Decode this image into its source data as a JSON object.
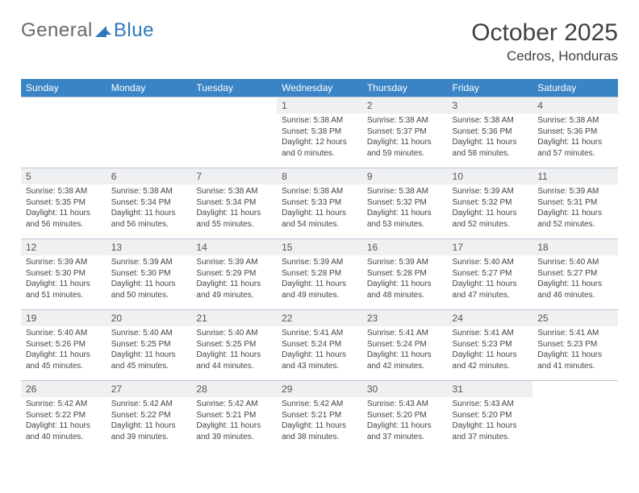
{
  "logo": {
    "text1": "General",
    "text2": "Blue"
  },
  "title": "October 2025",
  "location": "Cedros, Honduras",
  "header_bg": "#3a84c6",
  "daynum_bg": "#eef0f2",
  "border_color": "#b9c7d4",
  "day_headers": [
    "Sunday",
    "Monday",
    "Tuesday",
    "Wednesday",
    "Thursday",
    "Friday",
    "Saturday"
  ],
  "weeks": [
    [
      null,
      null,
      null,
      {
        "n": "1",
        "sr": "5:38 AM",
        "ss": "5:38 PM",
        "dl": "12 hours and 0 minutes."
      },
      {
        "n": "2",
        "sr": "5:38 AM",
        "ss": "5:37 PM",
        "dl": "11 hours and 59 minutes."
      },
      {
        "n": "3",
        "sr": "5:38 AM",
        "ss": "5:36 PM",
        "dl": "11 hours and 58 minutes."
      },
      {
        "n": "4",
        "sr": "5:38 AM",
        "ss": "5:36 PM",
        "dl": "11 hours and 57 minutes."
      }
    ],
    [
      {
        "n": "5",
        "sr": "5:38 AM",
        "ss": "5:35 PM",
        "dl": "11 hours and 56 minutes."
      },
      {
        "n": "6",
        "sr": "5:38 AM",
        "ss": "5:34 PM",
        "dl": "11 hours and 56 minutes."
      },
      {
        "n": "7",
        "sr": "5:38 AM",
        "ss": "5:34 PM",
        "dl": "11 hours and 55 minutes."
      },
      {
        "n": "8",
        "sr": "5:38 AM",
        "ss": "5:33 PM",
        "dl": "11 hours and 54 minutes."
      },
      {
        "n": "9",
        "sr": "5:38 AM",
        "ss": "5:32 PM",
        "dl": "11 hours and 53 minutes."
      },
      {
        "n": "10",
        "sr": "5:39 AM",
        "ss": "5:32 PM",
        "dl": "11 hours and 52 minutes."
      },
      {
        "n": "11",
        "sr": "5:39 AM",
        "ss": "5:31 PM",
        "dl": "11 hours and 52 minutes."
      }
    ],
    [
      {
        "n": "12",
        "sr": "5:39 AM",
        "ss": "5:30 PM",
        "dl": "11 hours and 51 minutes."
      },
      {
        "n": "13",
        "sr": "5:39 AM",
        "ss": "5:30 PM",
        "dl": "11 hours and 50 minutes."
      },
      {
        "n": "14",
        "sr": "5:39 AM",
        "ss": "5:29 PM",
        "dl": "11 hours and 49 minutes."
      },
      {
        "n": "15",
        "sr": "5:39 AM",
        "ss": "5:28 PM",
        "dl": "11 hours and 49 minutes."
      },
      {
        "n": "16",
        "sr": "5:39 AM",
        "ss": "5:28 PM",
        "dl": "11 hours and 48 minutes."
      },
      {
        "n": "17",
        "sr": "5:40 AM",
        "ss": "5:27 PM",
        "dl": "11 hours and 47 minutes."
      },
      {
        "n": "18",
        "sr": "5:40 AM",
        "ss": "5:27 PM",
        "dl": "11 hours and 46 minutes."
      }
    ],
    [
      {
        "n": "19",
        "sr": "5:40 AM",
        "ss": "5:26 PM",
        "dl": "11 hours and 45 minutes."
      },
      {
        "n": "20",
        "sr": "5:40 AM",
        "ss": "5:25 PM",
        "dl": "11 hours and 45 minutes."
      },
      {
        "n": "21",
        "sr": "5:40 AM",
        "ss": "5:25 PM",
        "dl": "11 hours and 44 minutes."
      },
      {
        "n": "22",
        "sr": "5:41 AM",
        "ss": "5:24 PM",
        "dl": "11 hours and 43 minutes."
      },
      {
        "n": "23",
        "sr": "5:41 AM",
        "ss": "5:24 PM",
        "dl": "11 hours and 42 minutes."
      },
      {
        "n": "24",
        "sr": "5:41 AM",
        "ss": "5:23 PM",
        "dl": "11 hours and 42 minutes."
      },
      {
        "n": "25",
        "sr": "5:41 AM",
        "ss": "5:23 PM",
        "dl": "11 hours and 41 minutes."
      }
    ],
    [
      {
        "n": "26",
        "sr": "5:42 AM",
        "ss": "5:22 PM",
        "dl": "11 hours and 40 minutes."
      },
      {
        "n": "27",
        "sr": "5:42 AM",
        "ss": "5:22 PM",
        "dl": "11 hours and 39 minutes."
      },
      {
        "n": "28",
        "sr": "5:42 AM",
        "ss": "5:21 PM",
        "dl": "11 hours and 39 minutes."
      },
      {
        "n": "29",
        "sr": "5:42 AM",
        "ss": "5:21 PM",
        "dl": "11 hours and 38 minutes."
      },
      {
        "n": "30",
        "sr": "5:43 AM",
        "ss": "5:20 PM",
        "dl": "11 hours and 37 minutes."
      },
      {
        "n": "31",
        "sr": "5:43 AM",
        "ss": "5:20 PM",
        "dl": "11 hours and 37 minutes."
      },
      null
    ]
  ],
  "labels": {
    "sunrise": "Sunrise:",
    "sunset": "Sunset:",
    "daylight": "Daylight:"
  }
}
